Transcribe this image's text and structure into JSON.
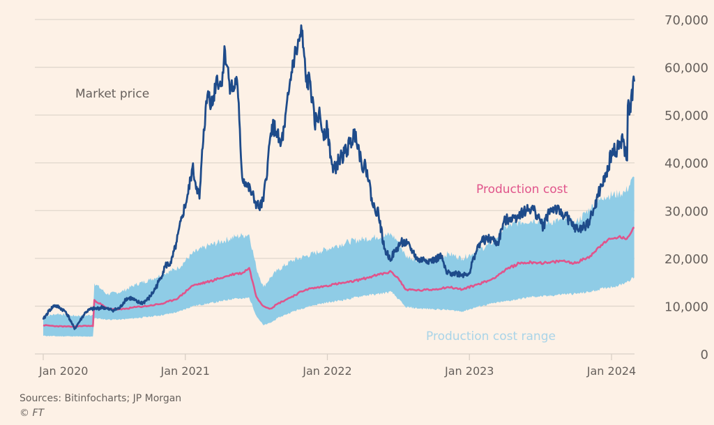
{
  "chart_data": {
    "type": "line",
    "title": "",
    "xlabel": "",
    "ylabel": "",
    "ylim": [
      0,
      70000
    ],
    "xlim": [
      "2020-01",
      "2024-02"
    ],
    "grid": true,
    "y_ticks": [
      "0",
      "10,000",
      "20,000",
      "30,000",
      "40,000",
      "50,000",
      "60,000",
      "70,000"
    ],
    "y_tick_values": [
      0,
      10000,
      20000,
      30000,
      40000,
      50000,
      60000,
      70000
    ],
    "x_ticks": [
      "Jan 2020",
      "Jan 2021",
      "Jan 2022",
      "Jan 2023",
      "Jan 2024"
    ],
    "x_tick_values": [
      2020.0,
      2021.0,
      2022.0,
      2023.0,
      2024.0
    ],
    "x_unit": "decimal year",
    "colors": {
      "market_price": "#1e4b8a",
      "production_cost": "#e0548b",
      "production_cost_range": "#8fcce6",
      "grid": "#e0d6cc",
      "text": "#66605c",
      "range_label": "#a9d4e8"
    },
    "annotations": [
      {
        "text": "Market price",
        "series": "market_price"
      },
      {
        "text": "Production cost",
        "series": "production_cost"
      },
      {
        "text": "Production cost range",
        "series": "production_cost_range"
      }
    ],
    "series": [
      {
        "name": "Market price",
        "key": "market_price",
        "x": [
          2020.0,
          2020.04,
          2020.08,
          2020.12,
          2020.16,
          2020.2,
          2020.22,
          2020.26,
          2020.3,
          2020.34,
          2020.38,
          2020.42,
          2020.46,
          2020.5,
          2020.54,
          2020.58,
          2020.62,
          2020.66,
          2020.7,
          2020.74,
          2020.78,
          2020.82,
          2020.86,
          2020.9,
          2020.94,
          2020.98,
          2021.02,
          2021.05,
          2021.08,
          2021.1,
          2021.13,
          2021.16,
          2021.19,
          2021.22,
          2021.25,
          2021.28,
          2021.31,
          2021.34,
          2021.36,
          2021.38,
          2021.4,
          2021.43,
          2021.46,
          2021.49,
          2021.52,
          2021.55,
          2021.58,
          2021.61,
          2021.64,
          2021.67,
          2021.7,
          2021.73,
          2021.76,
          2021.79,
          2021.82,
          2021.85,
          2021.88,
          2021.91,
          2021.94,
          2021.97,
          2022.0,
          2022.04,
          2022.08,
          2022.12,
          2022.16,
          2022.2,
          2022.24,
          2022.28,
          2022.32,
          2022.36,
          2022.4,
          2022.44,
          2022.48,
          2022.52,
          2022.56,
          2022.6,
          2022.64,
          2022.68,
          2022.72,
          2022.76,
          2022.8,
          2022.84,
          2022.88,
          2022.92,
          2022.96,
          2023.0,
          2023.04,
          2023.08,
          2023.12,
          2023.16,
          2023.2,
          2023.24,
          2023.28,
          2023.32,
          2023.36,
          2023.4,
          2023.44,
          2023.48,
          2023.52,
          2023.56,
          2023.6,
          2023.64,
          2023.68,
          2023.72,
          2023.76,
          2023.8,
          2023.84,
          2023.88,
          2023.92,
          2023.96,
          2024.0,
          2024.04,
          2024.08,
          2024.11,
          2024.14,
          2024.16
        ],
        "values": [
          7200,
          9000,
          10200,
          9600,
          8800,
          6500,
          5200,
          7000,
          8800,
          9400,
          9500,
          9800,
          9300,
          9200,
          9600,
          11500,
          11700,
          10800,
          10700,
          11500,
          13200,
          15500,
          18500,
          19000,
          23500,
          29000,
          33500,
          39000,
          35000,
          32500,
          47000,
          55000,
          52000,
          58000,
          56000,
          63500,
          57000,
          55000,
          58000,
          49000,
          37000,
          35500,
          34000,
          32000,
          30500,
          32000,
          40000,
          48000,
          46500,
          43500,
          47500,
          55000,
          61500,
          64000,
          67500,
          57000,
          57000,
          48000,
          50500,
          46500,
          47000,
          38000,
          40500,
          42000,
          44000,
          46500,
          40000,
          38500,
          31000,
          29500,
          22000,
          20000,
          21500,
          23500,
          23000,
          21500,
          19500,
          19800,
          19500,
          19700,
          20500,
          16800,
          17000,
          16800,
          16600,
          17000,
          21000,
          23500,
          24000,
          24000,
          23000,
          27500,
          28500,
          28500,
          29500,
          30000,
          30500,
          29000,
          26500,
          30000,
          30500,
          29500,
          29000,
          27000,
          26000,
          26500,
          27500,
          30500,
          34500,
          37000,
          42000,
          43000,
          44500,
          40500,
          42500,
          43000
        ],
        "values_tail": [
          52000,
          51500,
          57000
        ]
      },
      {
        "name": "Production cost",
        "key": "production_cost",
        "x": [
          2020.0,
          2020.1,
          2020.2,
          2020.3,
          2020.35,
          2020.36,
          2020.45,
          2020.55,
          2020.65,
          2020.75,
          2020.85,
          2020.95,
          2021.05,
          2021.15,
          2021.25,
          2021.35,
          2021.4,
          2021.45,
          2021.5,
          2021.55,
          2021.6,
          2021.65,
          2021.75,
          2021.85,
          2021.95,
          2022.05,
          2022.15,
          2022.25,
          2022.35,
          2022.45,
          2022.5,
          2022.55,
          2022.65,
          2022.75,
          2022.85,
          2022.95,
          2023.05,
          2023.15,
          2023.25,
          2023.35,
          2023.45,
          2023.55,
          2023.65,
          2023.75,
          2023.85,
          2023.95,
          2024.05,
          2024.1,
          2024.16
        ],
        "values": [
          6000,
          5800,
          5700,
          5900,
          5800,
          11300,
          9500,
          9300,
          9800,
          10100,
          10600,
          11700,
          14300,
          15000,
          15900,
          16800,
          16900,
          18000,
          12000,
          10000,
          9500,
          10500,
          12000,
          13500,
          14000,
          14600,
          15000,
          15700,
          16500,
          17200,
          15800,
          13500,
          13300,
          13500,
          14000,
          13500,
          14500,
          15500,
          17500,
          19000,
          19200,
          19000,
          19500,
          19000,
          20500,
          23500,
          24500,
          24000,
          26500
        ]
      },
      {
        "name": "Production cost range",
        "key": "production_cost_range",
        "type": "area",
        "x": [
          2020.0,
          2020.1,
          2020.2,
          2020.3,
          2020.35,
          2020.36,
          2020.45,
          2020.55,
          2020.65,
          2020.75,
          2020.85,
          2020.95,
          2021.05,
          2021.15,
          2021.25,
          2021.35,
          2021.4,
          2021.45,
          2021.5,
          2021.55,
          2021.6,
          2021.65,
          2021.75,
          2021.85,
          2021.95,
          2022.05,
          2022.15,
          2022.25,
          2022.35,
          2022.45,
          2022.5,
          2022.55,
          2022.65,
          2022.75,
          2022.85,
          2022.95,
          2023.05,
          2023.15,
          2023.25,
          2023.35,
          2023.45,
          2023.55,
          2023.65,
          2023.75,
          2023.85,
          2023.95,
          2024.05,
          2024.1,
          2024.16
        ],
        "low": [
          3800,
          3700,
          3700,
          3600,
          3700,
          7500,
          7200,
          7200,
          7500,
          7800,
          8200,
          8800,
          10000,
          10500,
          11000,
          11700,
          11500,
          11800,
          8000,
          6000,
          6500,
          7500,
          8800,
          9800,
          10500,
          11000,
          11500,
          12200,
          12500,
          13000,
          11500,
          9800,
          9500,
          9400,
          9200,
          8900,
          9800,
          10500,
          11000,
          11500,
          12000,
          12100,
          12500,
          12600,
          13000,
          13800,
          14300,
          15000,
          16000
        ],
        "high": [
          7800,
          8400,
          8000,
          8000,
          8200,
          14800,
          12500,
          13000,
          14500,
          15500,
          16800,
          18000,
          21000,
          22500,
          23500,
          24500,
          24800,
          25000,
          18000,
          14000,
          16000,
          17500,
          19500,
          20500,
          21500,
          22500,
          23500,
          24000,
          24500,
          25000,
          23500,
          20500,
          19500,
          19500,
          21000,
          20000,
          21500,
          23000,
          26500,
          27500,
          28000,
          27500,
          28000,
          27500,
          30500,
          33000,
          33500,
          34000,
          37000
        ]
      }
    ]
  },
  "footer": {
    "sources": "Sources: Bitinfocharts; JP Morgan",
    "credit": "© FT"
  }
}
